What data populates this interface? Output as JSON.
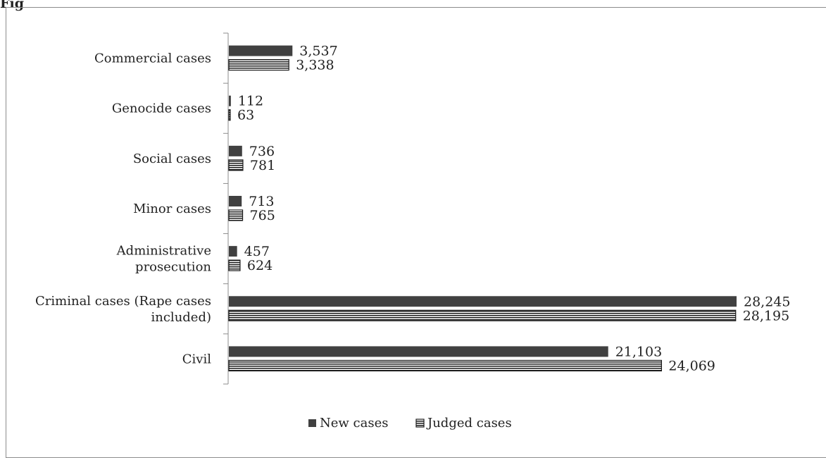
{
  "figure_label": "Fig",
  "chart_data": {
    "type": "bar",
    "orientation": "horizontal",
    "categories": [
      [
        "Commercial cases"
      ],
      [
        "Genocide cases"
      ],
      [
        "Social cases"
      ],
      [
        "Minor cases"
      ],
      [
        "Administrative",
        "prosecution"
      ],
      [
        "Criminal cases (Rape cases",
        "included)"
      ],
      [
        "Civil"
      ]
    ],
    "series": [
      {
        "name": "New cases",
        "values": [
          3537,
          112,
          736,
          713,
          457,
          28245,
          21103
        ],
        "labels": [
          "3,537",
          "112",
          "736",
          "713",
          "457",
          "28,245",
          "21,103"
        ],
        "color": "#404040",
        "pattern": "solid"
      },
      {
        "name": "Judged cases",
        "values": [
          3338,
          63,
          781,
          765,
          624,
          28195,
          24069
        ],
        "labels": [
          "3,338",
          "63",
          "781",
          "765",
          "624",
          "28,195",
          "24,069"
        ],
        "color": "#1a1a1a",
        "pattern": "horizontal-stripes"
      }
    ],
    "xlim": [
      0,
      30000
    ],
    "grid": false,
    "legend_position": "bottom"
  }
}
